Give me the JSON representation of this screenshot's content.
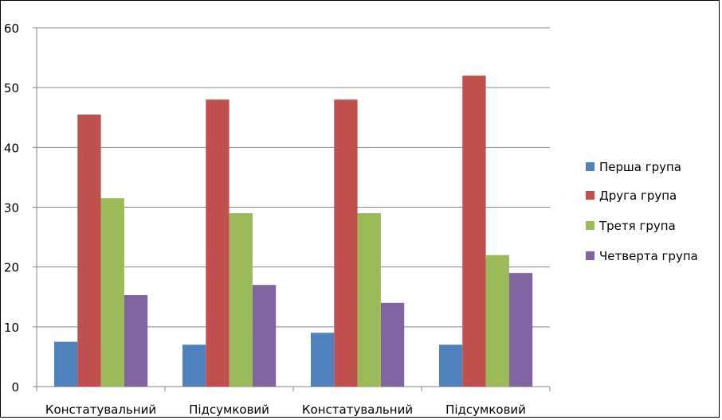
{
  "chart_data": {
    "type": "bar",
    "title": "",
    "xlabel": "",
    "ylabel": "",
    "ylim": [
      0,
      60
    ],
    "yticks": [
      0,
      10,
      20,
      30,
      40,
      50,
      60
    ],
    "grid": true,
    "legend_position": "right",
    "categories": [
      "Констатувальний",
      "Підсумковий",
      "Констатувальний",
      "Підсумковий"
    ],
    "series": [
      {
        "name": "Перша група",
        "color": "#4F81BD",
        "values": [
          7.5,
          7,
          9,
          7
        ]
      },
      {
        "name": "Друга група",
        "color": "#C0504D",
        "values": [
          45.5,
          48,
          48,
          52
        ]
      },
      {
        "name": "Третя група",
        "color": "#9BBB59",
        "values": [
          31.5,
          29,
          29,
          22
        ]
      },
      {
        "name": "Четверта група",
        "color": "#8064A2",
        "values": [
          15.3,
          17,
          14,
          19
        ]
      }
    ]
  }
}
